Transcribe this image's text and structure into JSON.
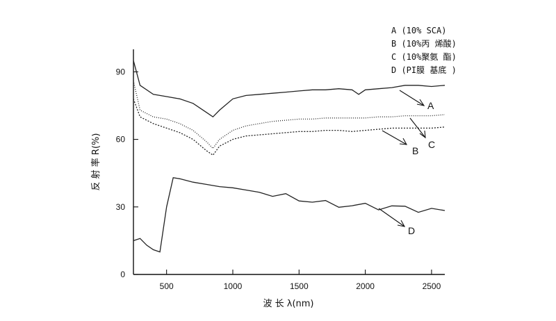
{
  "chart_data": {
    "type": "line",
    "xlabel": "波 长 λ(nm)",
    "ylabel": "反 射 率 R(%)",
    "xlim": [
      250,
      2600
    ],
    "ylim": [
      0,
      100
    ],
    "x_ticks": [
      "500",
      "1000",
      "1500",
      "2000",
      "2500"
    ],
    "y_ticks": [
      "0",
      "30",
      "60",
      "90"
    ],
    "legend": {
      "placement": "top-right",
      "entries": [
        "A (10% SCA)",
        "B (10%丙 烯酸)",
        "C (10%聚氨 酯)",
        "D (PI膜 基底 )"
      ]
    },
    "series": [
      {
        "name": "A",
        "x": [
          250,
          300,
          400,
          500,
          600,
          700,
          800,
          850,
          900,
          1000,
          1100,
          1200,
          1300,
          1400,
          1500,
          1600,
          1700,
          1800,
          1900,
          1950,
          2000,
          2100,
          2200,
          2300,
          2400,
          2500,
          2600
        ],
        "y": [
          95,
          84,
          80,
          79,
          78,
          76,
          72,
          70,
          73,
          78,
          79.5,
          80,
          80.5,
          81,
          81.5,
          82,
          82,
          82.5,
          82,
          80,
          82,
          82.5,
          83,
          84,
          84,
          83.5,
          84
        ]
      },
      {
        "name": "C",
        "x": [
          250,
          300,
          400,
          500,
          600,
          700,
          800,
          850,
          900,
          1000,
          1100,
          1200,
          1300,
          1400,
          1500,
          1600,
          1700,
          1800,
          1900,
          2000,
          2100,
          2200,
          2300,
          2400,
          2500,
          2600
        ],
        "y": [
          86,
          73,
          70,
          69,
          67,
          64,
          59,
          56,
          60,
          64,
          66,
          67,
          68,
          68.5,
          69,
          69,
          69.5,
          69.5,
          69.5,
          69.5,
          70,
          70,
          70.5,
          70.5,
          70.5,
          71
        ]
      },
      {
        "name": "B",
        "x": [
          250,
          300,
          400,
          500,
          600,
          700,
          800,
          850,
          900,
          1000,
          1100,
          1200,
          1300,
          1400,
          1500,
          1600,
          1700,
          1800,
          1900,
          2000,
          2100,
          2200,
          2300,
          2400,
          2500,
          2600
        ],
        "y": [
          78,
          70,
          67,
          65,
          63,
          60,
          55,
          53,
          57,
          60,
          61.5,
          62,
          62.5,
          63,
          63.5,
          63.5,
          64,
          64,
          63.5,
          64,
          64.5,
          65,
          65,
          65,
          65,
          65.5
        ]
      },
      {
        "name": "D",
        "x": [
          250,
          300,
          350,
          400,
          450,
          500,
          550,
          600,
          700,
          800,
          900,
          1000,
          1100,
          1200,
          1300,
          1400,
          1500,
          1600,
          1700,
          1800,
          1900,
          2000,
          2100,
          2200,
          2300,
          2400,
          2500,
          2600
        ],
        "y": [
          15,
          16,
          13,
          11,
          10,
          30,
          43,
          42.5,
          41,
          40,
          39,
          38.5,
          37.5,
          36.5,
          35.5,
          34.5,
          33.5,
          32.5,
          31.5,
          31,
          30.5,
          30.5,
          30,
          30,
          29.5,
          29,
          28.5,
          28
        ]
      }
    ],
    "series_label_positions": [
      "A",
      "C",
      "B",
      "D"
    ]
  }
}
